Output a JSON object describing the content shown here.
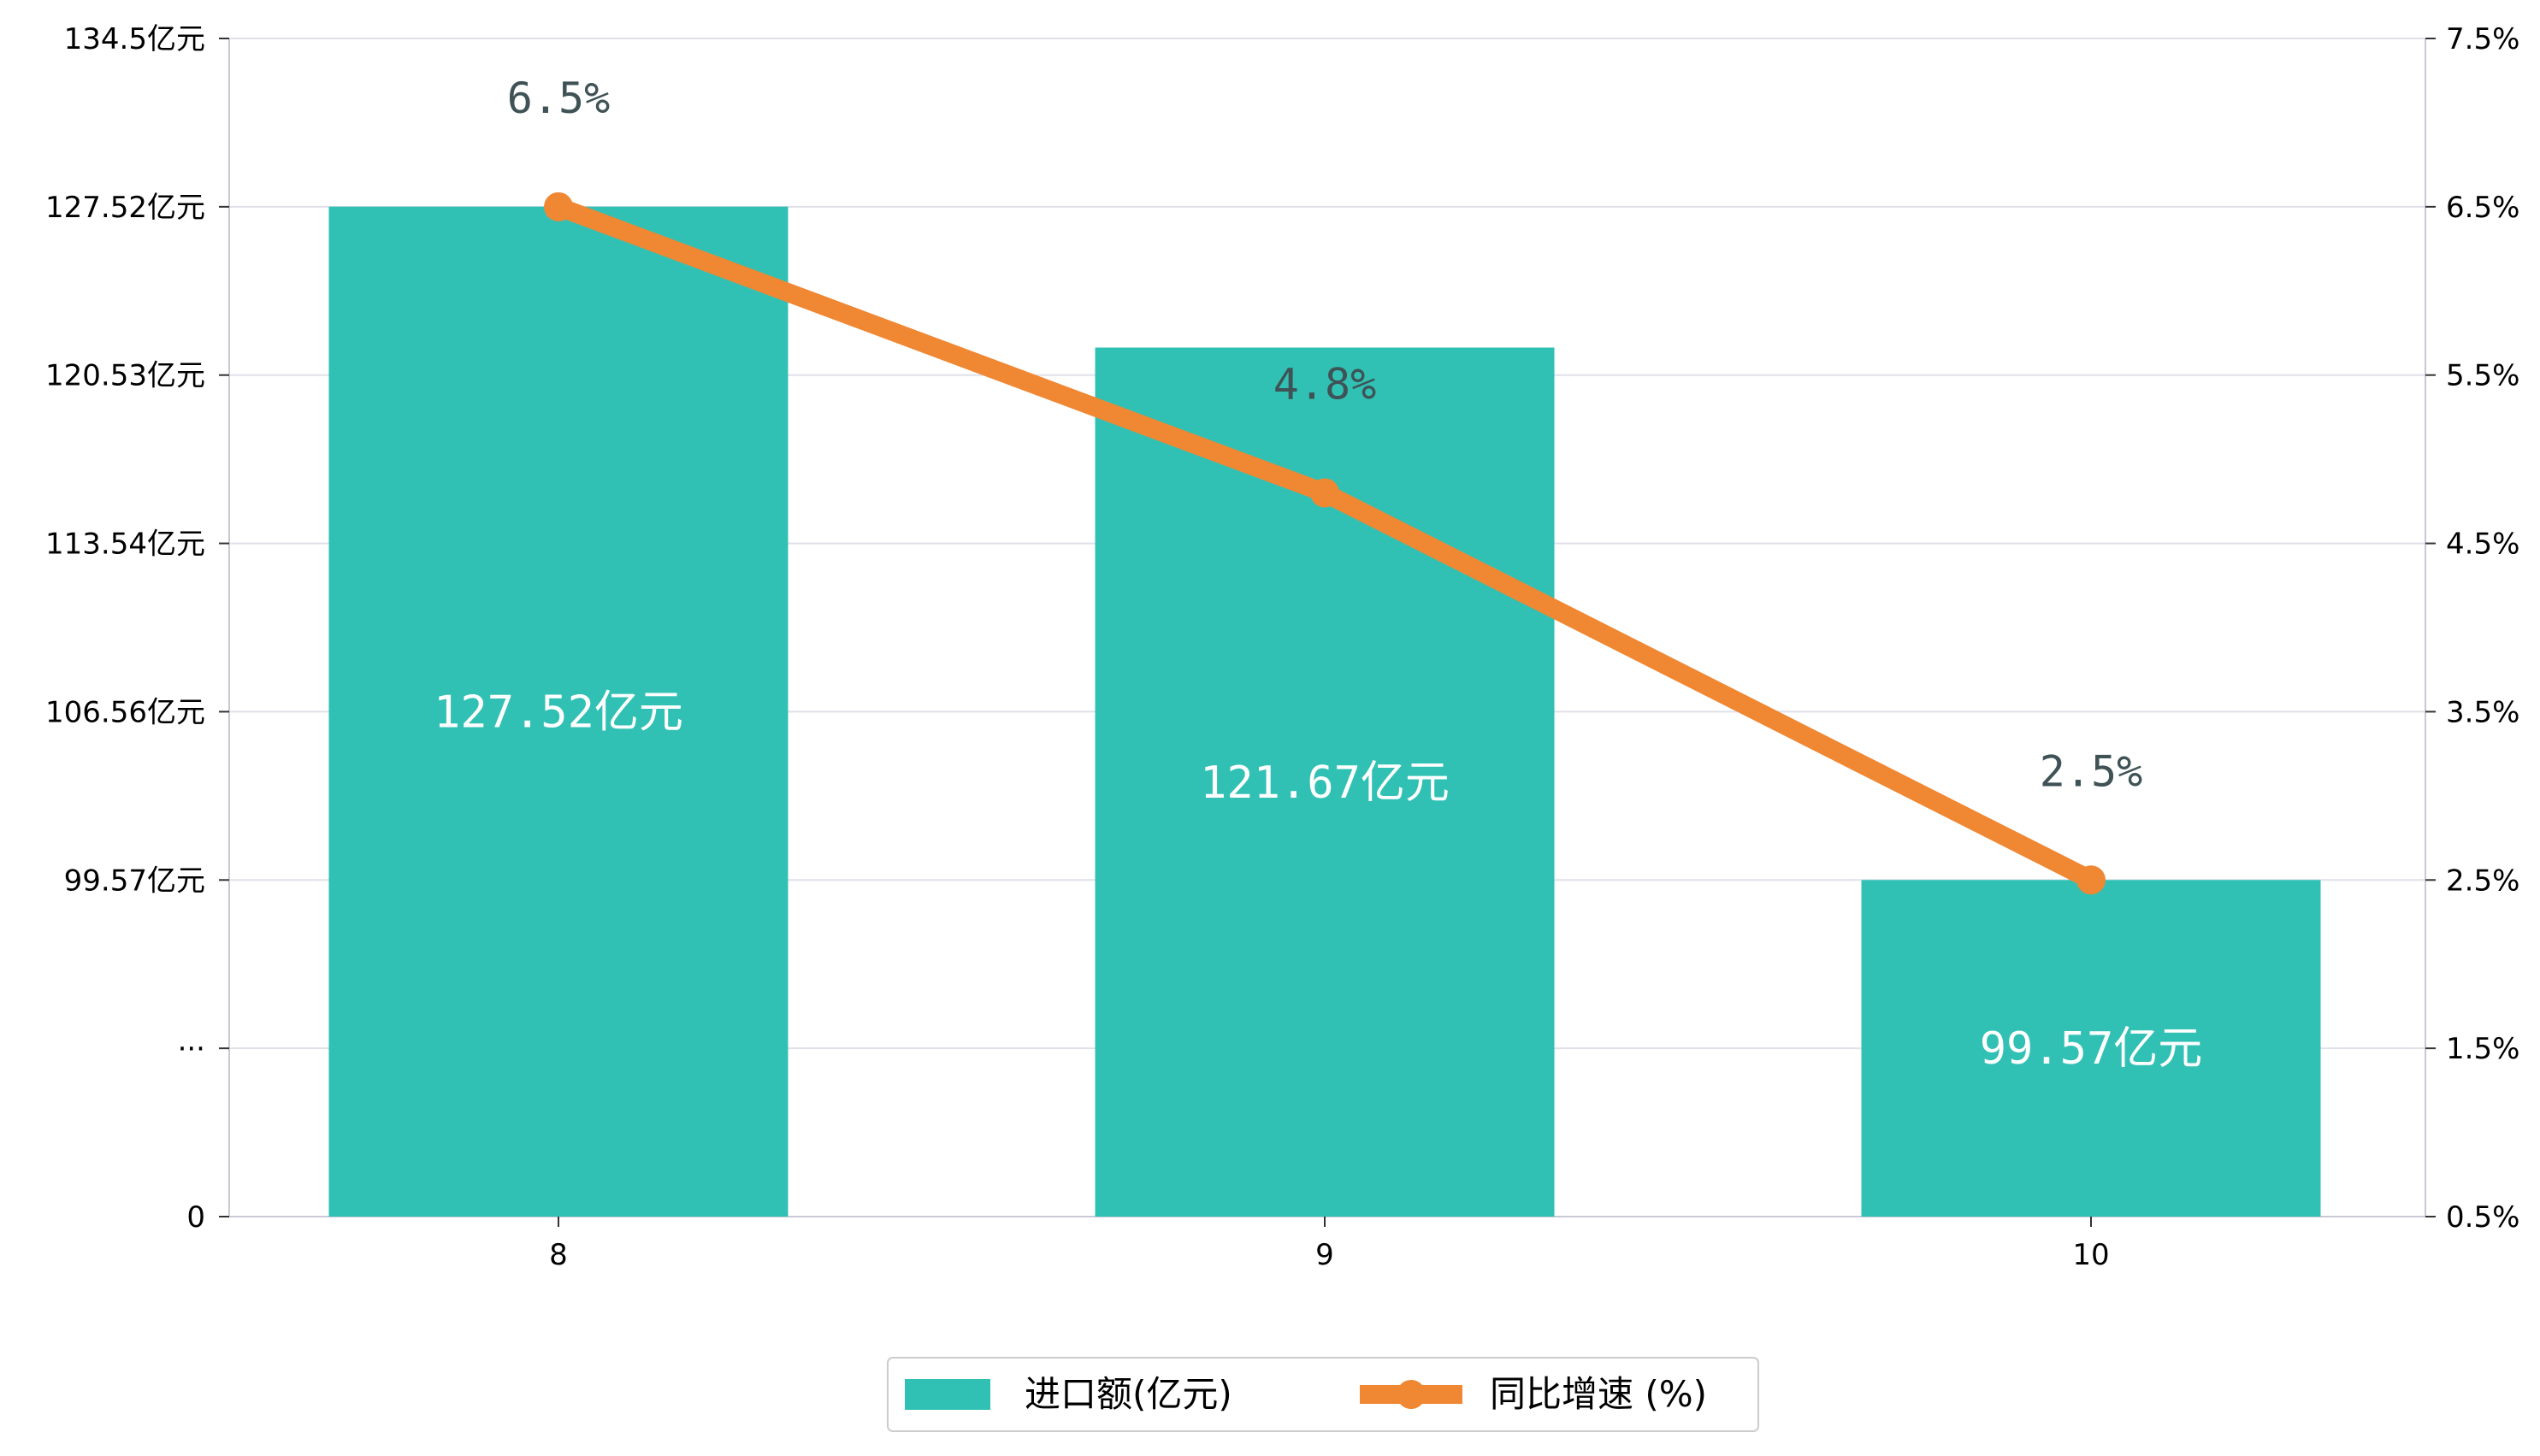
{
  "colors": {
    "bar": "#31c1b4",
    "line": "#ef8733",
    "grid": "#e0e0ea",
    "axis": "#c8c8d6",
    "pct_label": "#3f5255",
    "bar_label": "#ffffff"
  },
  "chart_data": {
    "type": "bar",
    "categories": [
      "8",
      "9",
      "10"
    ],
    "series": [
      {
        "name": "进口额(亿元)",
        "type": "bar",
        "values": [
          127.52,
          121.67,
          99.57
        ],
        "labels": [
          "127.52亿元",
          "121.67亿元",
          "99.57亿元"
        ]
      },
      {
        "name": "同比增速 (%)",
        "type": "line",
        "values": [
          6.5,
          4.8,
          2.5
        ],
        "labels": [
          "6.5%",
          "4.8%",
          "2.5%"
        ]
      }
    ],
    "y_left": {
      "ticks": [
        "0",
        "···",
        "99.57亿元",
        "106.56亿元",
        "113.54亿元",
        "120.53亿元",
        "127.52亿元",
        "134.5亿元"
      ],
      "tick_values": [
        0,
        1,
        2,
        3,
        4,
        5,
        6,
        7
      ],
      "break_at": [
        99.57,
        2
      ],
      "scale": [
        99.57,
        2,
        134.5,
        7
      ]
    },
    "y_right": {
      "ticks": [
        "0.5%",
        "1.5%",
        "2.5%",
        "3.5%",
        "4.5%",
        "5.5%",
        "6.5%",
        "7.5%"
      ],
      "ylim": [
        0.5,
        7.5
      ]
    },
    "grid": true,
    "legend": {
      "position": "bottom-center",
      "items": [
        "进口额(亿元)",
        "同比增速 (%)"
      ]
    }
  }
}
